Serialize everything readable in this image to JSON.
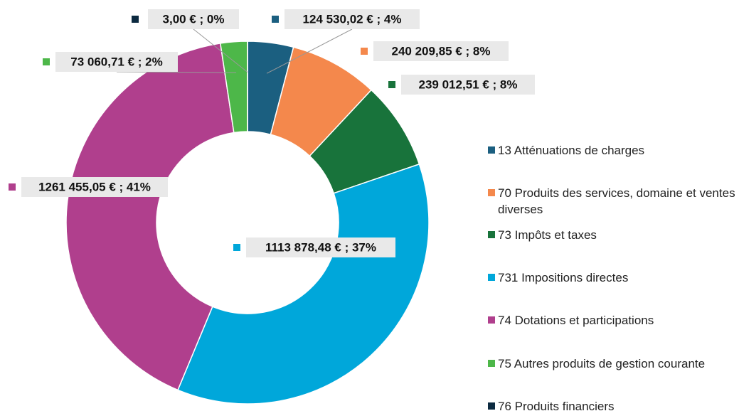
{
  "chart_data": {
    "type": "pie",
    "donut": true,
    "categories": [
      "13 Atténuations de charges",
      "70 Produits des services, domaine et ventes diverses",
      "73 Impôts et taxes",
      "731 Impositions directes",
      "74 Dotations et participations",
      "75 Autres produits de gestion courante",
      "76 Produits financiers"
    ],
    "values": [
      124530.02,
      240209.85,
      239012.51,
      1113878.48,
      1261455.05,
      73060.71,
      3.0
    ],
    "value_labels": [
      "124 530,02 € ; 4%",
      "240 209,85 € ; 8%",
      "239 012,51 € ; 8%",
      "1113 878,48 € ; 37%",
      "1261 455,05 € ; 41%",
      "73 060,71 € ; 2%",
      "3,00 € ; 0%"
    ],
    "colors": [
      "#1b5f80",
      "#f4884c",
      "#18733b",
      "#00a7da",
      "#b03f8d",
      "#4db749",
      "#0c2a40"
    ],
    "legend": "right"
  }
}
